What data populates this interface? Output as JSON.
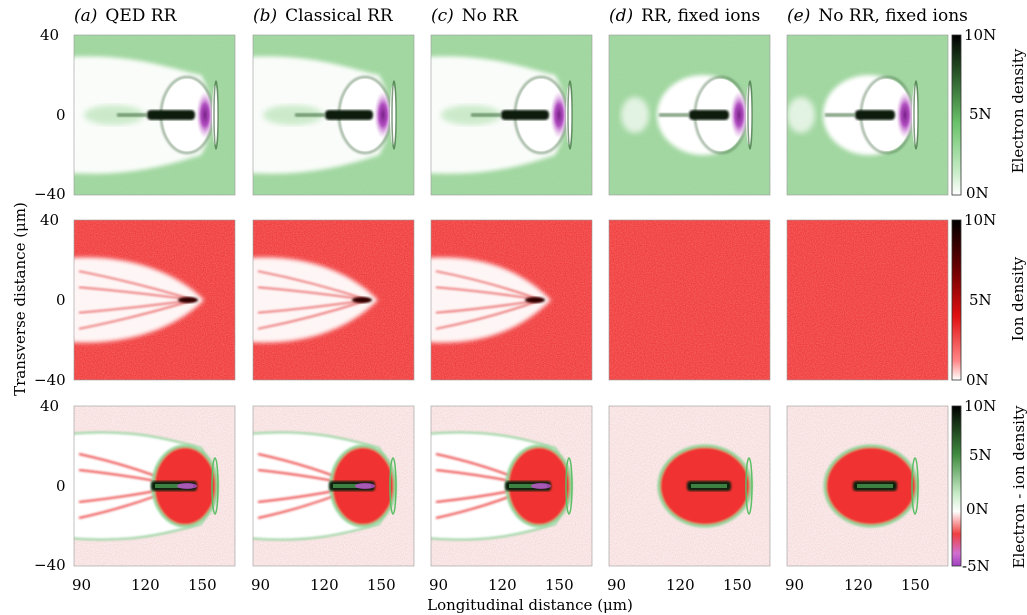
{
  "panels": [
    {
      "label": "(a)",
      "title": "QED RR"
    },
    {
      "label": "(b)",
      "title": "Classical RR"
    },
    {
      "label": "(c)",
      "title": "No RR"
    },
    {
      "label": "(d)",
      "title": "RR, fixed ions"
    },
    {
      "label": "(e)",
      "title": "No RR, fixed ions"
    }
  ],
  "rows": [
    {
      "name": "electron",
      "cbar_label": "Electron density",
      "cbar_ticks": [
        "10N",
        "5N",
        "0N"
      ],
      "colors": {
        "background": "#a7dba6",
        "low": "#ffffff",
        "mid": "#8fd08d",
        "high": "#102010",
        "peak": "#9b2fa5"
      }
    },
    {
      "name": "ion",
      "cbar_label": "Ion density",
      "cbar_ticks": [
        "10N",
        "5N",
        "0N"
      ],
      "colors": {
        "background": "#ef2a2a",
        "low": "#ffffff",
        "mid": "#e81818",
        "high": "#180000"
      }
    },
    {
      "name": "difference",
      "cbar_label": "Electron - ion density",
      "cbar_ticks": [
        "10N",
        "5N",
        "0N",
        "-5N"
      ],
      "colors": {
        "background": "#e9d2c6",
        "positive": "#6fcf7a",
        "negative": "#f02828",
        "high": "#102010",
        "low": "#a040c0"
      }
    }
  ],
  "y_axis": {
    "label": "Transverse distance (μm)",
    "ticks": [
      "40",
      "0",
      "−40"
    ]
  },
  "x_axis": {
    "label": "Longitudinal distance (μm)",
    "ticks": [
      "90",
      "120",
      "150"
    ]
  }
}
